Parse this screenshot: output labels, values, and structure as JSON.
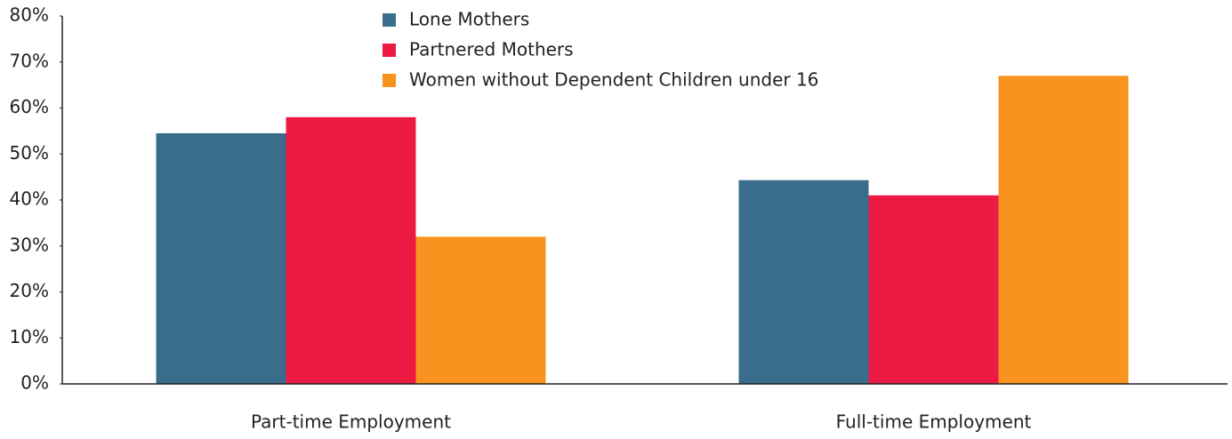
{
  "chart_data": {
    "type": "bar",
    "categories": [
      "Part-time Employment",
      "Full-time Employment"
    ],
    "series": [
      {
        "name": "Lone Mothers",
        "color": "#3a6d8c",
        "values": [
          54.5,
          44.3
        ]
      },
      {
        "name": "Partnered Mothers",
        "color": "#ed1a43",
        "values": [
          58,
          41
        ]
      },
      {
        "name": "Women without Dependent Children under 16",
        "color": "#f7931e",
        "values": [
          32,
          67
        ]
      }
    ],
    "ylim": [
      0,
      80
    ],
    "yticks": [
      {
        "value": 0,
        "label": "0%"
      },
      {
        "value": 10,
        "label": "10%"
      },
      {
        "value": 20,
        "label": "20%"
      },
      {
        "value": 30,
        "label": "30%"
      },
      {
        "value": 40,
        "label": "40%"
      },
      {
        "value": 50,
        "label": "50%"
      },
      {
        "value": 60,
        "label": "60%"
      },
      {
        "value": 70,
        "label": "70%"
      },
      {
        "value": 80,
        "label": "80%"
      }
    ],
    "legend": "top"
  }
}
